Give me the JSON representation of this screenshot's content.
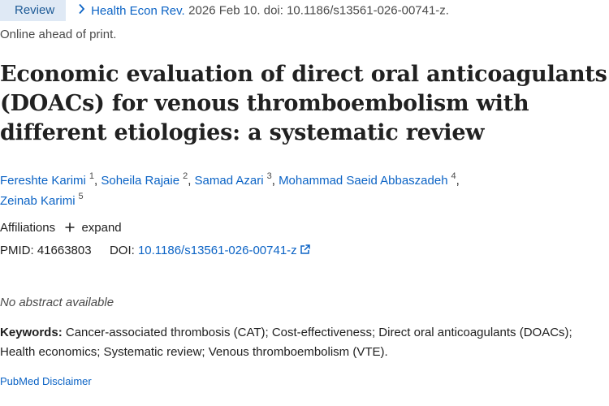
{
  "citation": {
    "badge": "Review",
    "journal": "Health Econ Rev.",
    "details": "2026 Feb 10. doi: 10.1186/s13561-026-00741-z."
  },
  "status": "Online ahead of print.",
  "title": "Economic evaluation of direct oral anticoagulants (DOACs) for venous thromboembolism with different etiologies: a systematic review",
  "authors": [
    {
      "name": "Fereshte Karimi",
      "aff": "1"
    },
    {
      "name": "Soheila Rajaie",
      "aff": "2"
    },
    {
      "name": "Samad Azari",
      "aff": "3"
    },
    {
      "name": "Mohammad Saeid Abbaszadeh",
      "aff": "4"
    },
    {
      "name": "Zeinab Karimi",
      "aff": "5"
    }
  ],
  "affiliations": {
    "label": "Affiliations",
    "expand": "expand"
  },
  "ids": {
    "pmid_label": "PMID:",
    "pmid": "41663803",
    "doi_label": "DOI:",
    "doi": "10.1186/s13561-026-00741-z"
  },
  "abstract_note": "No abstract available",
  "keywords": {
    "label": "Keywords:",
    "text": "Cancer-associated thrombosis (CAT); Cost-effectiveness; Direct oral anticoagulants (DOACs); Health economics; Systematic review; Venous thromboembolism (VTE)."
  },
  "disclaimer": "PubMed Disclaimer",
  "colors": {
    "link": "#0b63c5",
    "badge_bg": "#dfe9f5",
    "text": "#212121"
  },
  "icons": [
    "chevron-right-icon",
    "plus-icon",
    "external-link-icon"
  ]
}
